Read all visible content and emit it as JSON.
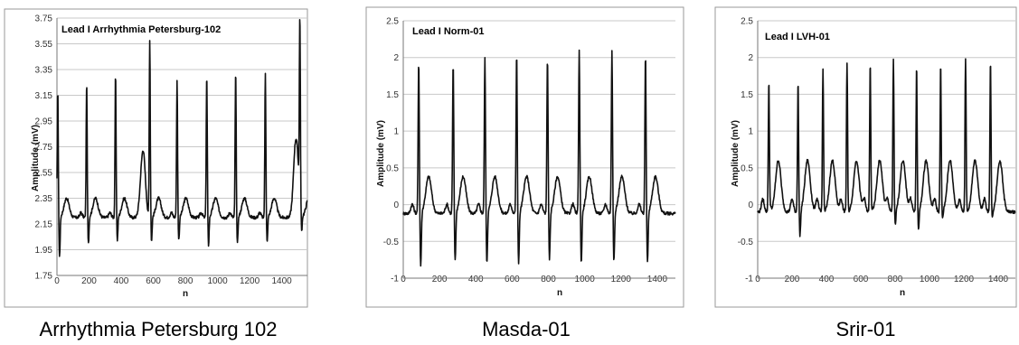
{
  "chart_data": [
    {
      "type": "line",
      "title": "Lead I Arrhythmia Petersburg-102",
      "xlabel": "n",
      "ylabel": "Amplitude (mV)",
      "xlim": [
        0,
        1560
      ],
      "ylim": [
        1.75,
        3.75
      ],
      "xticks": [
        0,
        200,
        400,
        600,
        800,
        1000,
        1200,
        1400
      ],
      "yticks": [
        "1.75",
        "1.95",
        "2.15",
        "2.35",
        "2.55",
        "2.75",
        "2.95",
        "3.15",
        "3.35",
        "3.55",
        "3.75"
      ],
      "grid": true,
      "caption": "Arrhythmia Petersburg 102",
      "series": [
        {
          "peaks": [
            5,
            185,
            365,
            578,
            748,
            933,
            1113,
            1298,
            1513
          ],
          "peak_values": [
            3.2,
            3.25,
            3.32,
            3.58,
            3.26,
            3.31,
            3.34,
            3.33,
            3.6
          ],
          "trough_values": [
            1.89,
            2.0,
            2.02,
            2.01,
            2.02,
            1.98,
            1.99,
            2.0,
            2.04
          ],
          "baseline": 2.2,
          "twave_height": 0.15,
          "bumps": [
            {
              "x": 535,
              "height": 0.5
            },
            {
              "x": 1490,
              "height": 0.6
            }
          ]
        }
      ]
    },
    {
      "type": "line",
      "title": "Lead I Norm-01",
      "xlabel": "n",
      "ylabel": "Amplitude (mV)",
      "xlim": [
        0,
        1500
      ],
      "ylim": [
        -1,
        2.5
      ],
      "xticks": [
        0,
        200,
        400,
        600,
        800,
        1000,
        1200,
        1400
      ],
      "yticks": [
        "-1",
        "-0.5",
        "0",
        "0.5",
        "1",
        "1.5",
        "2",
        "2.5"
      ],
      "grid": true,
      "caption": "Masda-01",
      "series": [
        {
          "peaks": [
            85,
            275,
            450,
            625,
            795,
            970,
            1150,
            1335
          ],
          "peak_values": [
            1.97,
            1.93,
            2.0,
            2.07,
            2.02,
            2.12,
            2.1,
            2.05
          ],
          "trough_values": [
            -0.85,
            -0.78,
            -0.8,
            -0.8,
            -0.75,
            -0.8,
            -0.78,
            -0.8
          ],
          "baseline": -0.12,
          "twave_height": 0.5
        }
      ]
    },
    {
      "type": "line",
      "title": "Lead I LVH-01",
      "xlabel": "n",
      "ylabel": "Amplitude (mV)",
      "xlim": [
        0,
        1500
      ],
      "ylim": [
        -1,
        2.5
      ],
      "xticks": [
        0,
        200,
        400,
        600,
        800,
        1000,
        1200,
        1400
      ],
      "yticks": [
        "-1",
        "-0.5",
        "0",
        "0.5",
        "1",
        "1.5",
        "2",
        "2.5"
      ],
      "grid": true,
      "caption": "Srir-01",
      "series": [
        {
          "peaks": [
            65,
            235,
            380,
            520,
            655,
            790,
            925,
            1065,
            1210,
            1355
          ],
          "peak_values": [
            1.7,
            1.68,
            1.84,
            1.93,
            1.94,
            1.96,
            1.89,
            1.93,
            1.99,
            1.97
          ],
          "trough_values": [
            -0.05,
            -0.45,
            -0.1,
            -0.1,
            -0.08,
            -0.3,
            -0.35,
            -0.2,
            -0.1,
            -0.2
          ],
          "baseline": -0.1,
          "twave_height": 0.7
        }
      ]
    }
  ]
}
